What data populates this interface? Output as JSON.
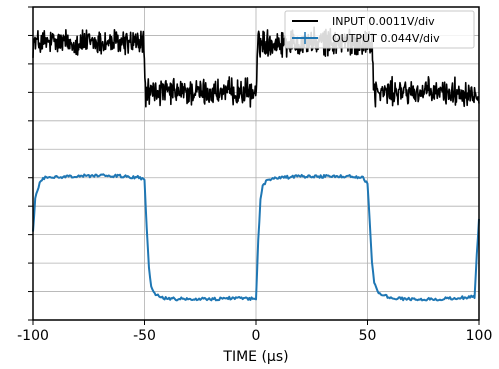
{
  "chart_data": {
    "type": "line",
    "xlabel": "TIME (μs)",
    "ylabel": "",
    "xlim": [
      -100,
      100
    ],
    "ylim": [
      0,
      11
    ],
    "x_ticks": [
      -100,
      -50,
      0,
      50,
      100
    ],
    "x_tick_labels": [
      "-100",
      "-50",
      "0",
      "50",
      "100"
    ],
    "y_ticks": [
      0,
      1,
      2,
      3,
      4,
      5,
      6,
      7,
      8,
      9,
      10,
      11
    ],
    "y_tick_labels_shown": false,
    "grid": true,
    "legend_position": "top-right",
    "series": [
      {
        "name": "INPUT 0.0011V/div",
        "color": "#000000",
        "noisy": true,
        "x": [
          -100,
          -50.5,
          -49.5,
          0,
          1,
          52,
          53,
          100
        ],
        "values": [
          9.75,
          9.75,
          8.0,
          8.0,
          9.75,
          9.75,
          8.0,
          8.0
        ],
        "noise_amplitude": 0.35
      },
      {
        "name": "OUTPUT 0.044V/div",
        "color": "#1f77b4",
        "noisy": false,
        "x": [
          -100,
          -99,
          -97,
          -95,
          -90,
          -80,
          -70,
          -60,
          -52,
          -50,
          -49,
          -48,
          -47,
          -45,
          -40,
          -30,
          -20,
          -10,
          -2,
          0,
          1,
          2,
          3,
          5,
          10,
          20,
          30,
          40,
          48,
          50,
          51,
          52,
          53,
          55,
          60,
          70,
          80,
          90,
          98,
          99,
          100
        ],
        "values": [
          3.1,
          4.3,
          4.8,
          5.0,
          5.02,
          5.05,
          5.08,
          5.05,
          5.0,
          4.9,
          3.2,
          1.8,
          1.2,
          0.9,
          0.75,
          0.72,
          0.73,
          0.76,
          0.75,
          0.7,
          2.8,
          4.2,
          4.7,
          4.9,
          5.0,
          5.05,
          5.05,
          5.05,
          5.0,
          4.8,
          3.5,
          2.0,
          1.3,
          0.95,
          0.78,
          0.73,
          0.72,
          0.78,
          0.8,
          2.3,
          3.5
        ],
        "noise_amplitude": 0.05
      }
    ]
  }
}
